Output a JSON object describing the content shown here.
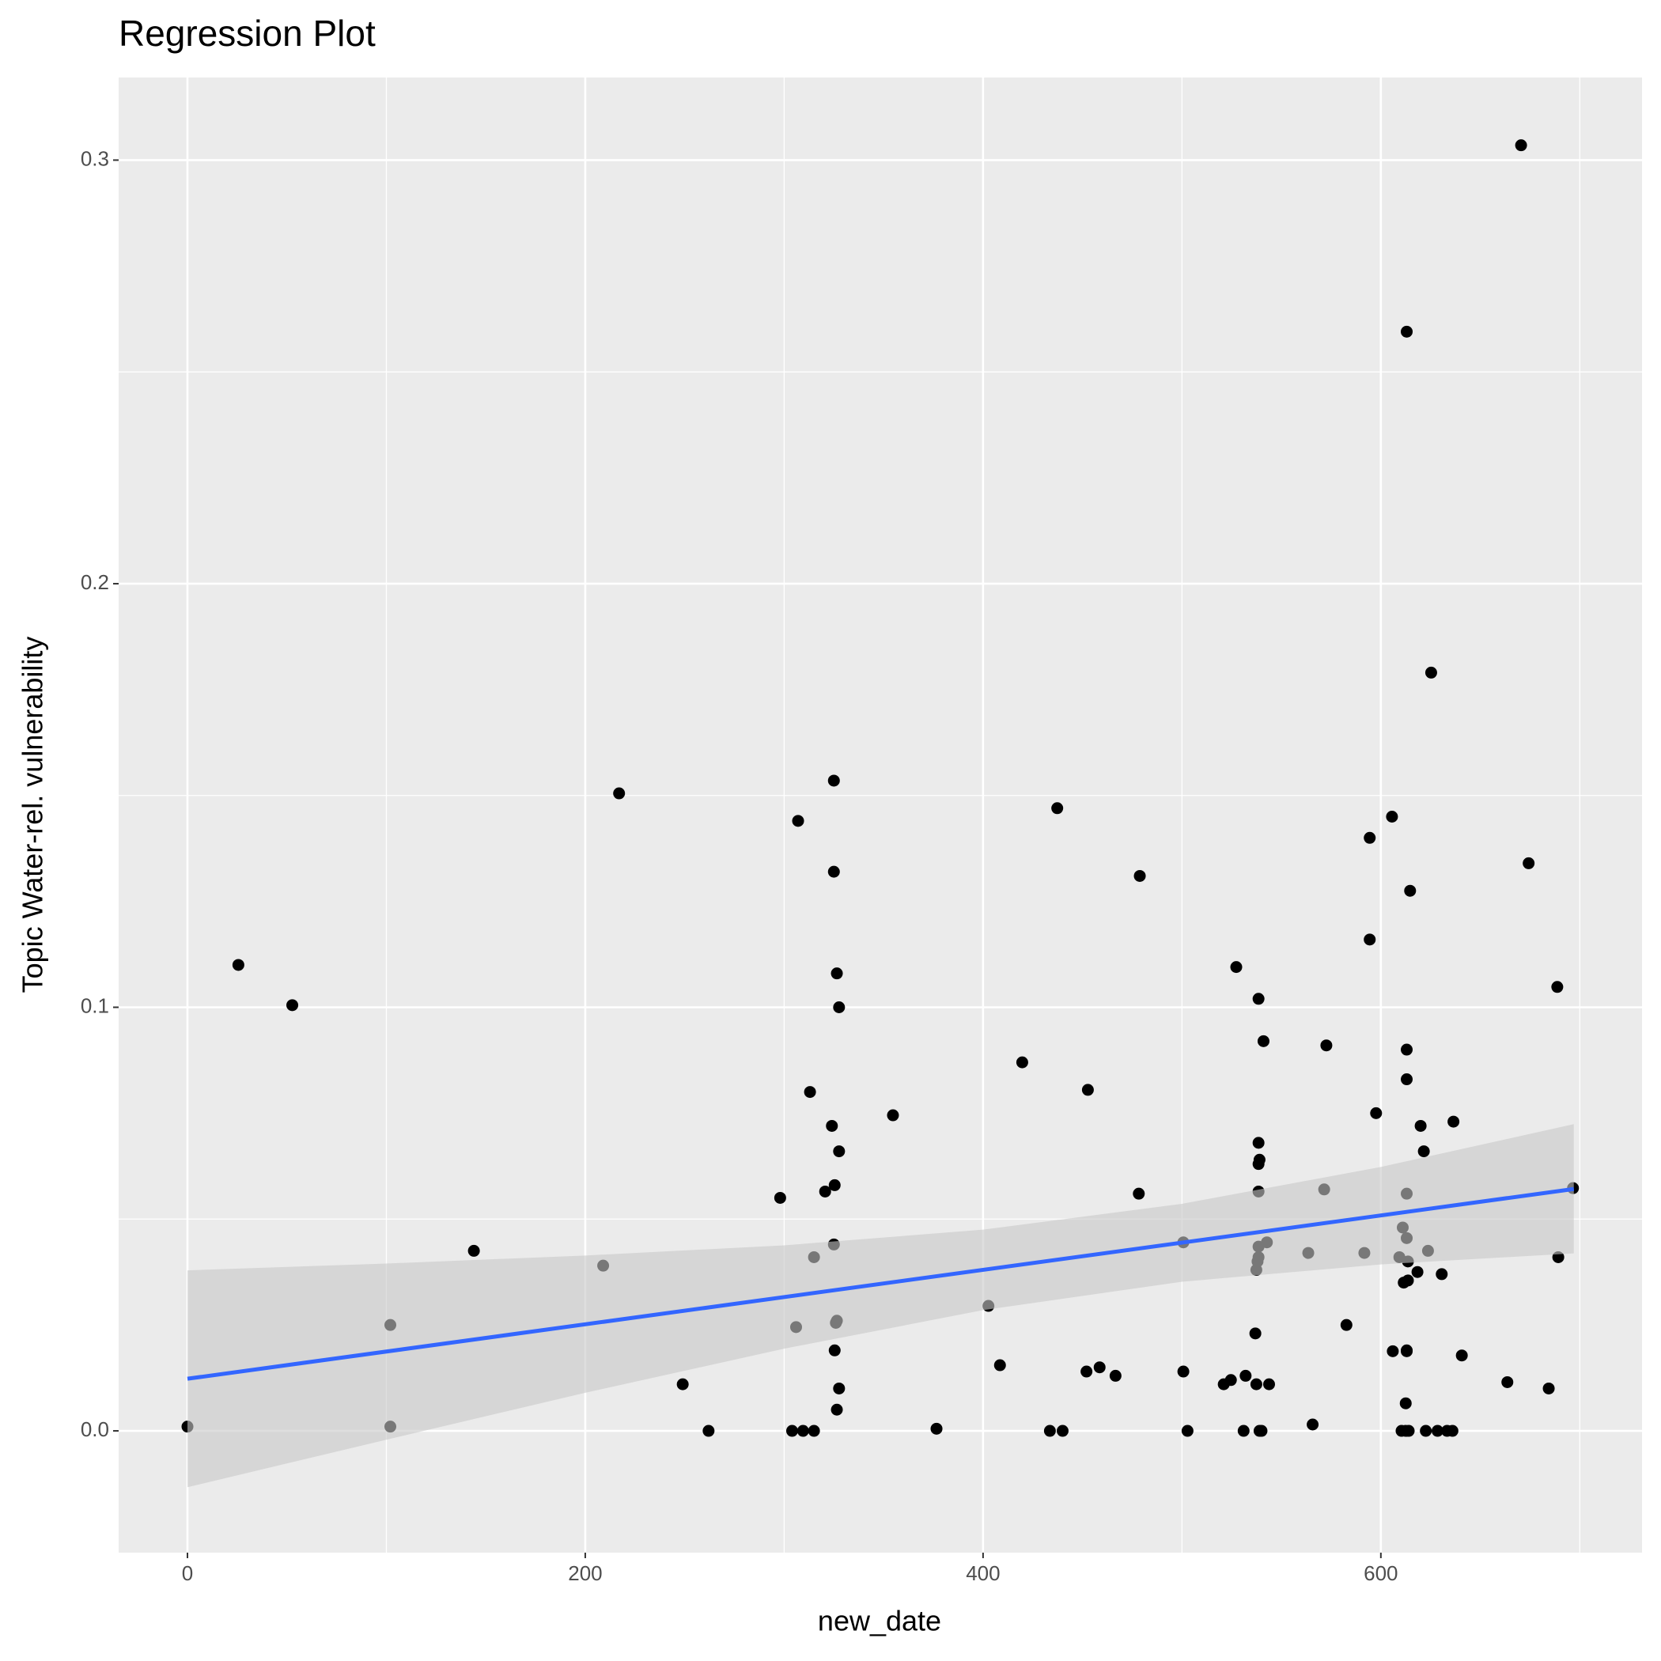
{
  "chart_data": {
    "type": "scatter",
    "title": "Regression Plot",
    "x_label": "new_date",
    "y_label": "Topic Water-rel. vulnerability",
    "xlim": [
      -34.6,
      731.3
    ],
    "ylim": [
      -0.02875,
      0.3195
    ],
    "xticks": [
      0,
      200,
      400,
      600
    ],
    "yticks": [
      {
        "value": 0,
        "label": "0.0"
      },
      0.1,
      0.2,
      0.3
    ],
    "xminorticks": [
      100,
      300,
      500,
      700
    ],
    "yminorticks": [
      0.05,
      0.15,
      0.25
    ],
    "grid": true,
    "color": "#000000",
    "x": [
      0,
      25.6,
      52.7,
      102,
      102,
      144,
      209,
      217,
      249,
      262,
      298,
      304,
      306,
      307,
      309.5,
      313,
      315,
      315,
      320.6,
      324,
      325,
      325,
      325,
      325.4,
      325.4,
      326,
      326.5,
      326.5,
      326.5,
      327.6,
      327.6,
      327.6,
      354.7,
      376.6,
      402.7,
      408.5,
      419.7,
      433.6,
      437.3,
      440,
      452,
      452.7,
      458.6,
      466.6,
      478.3,
      478.8,
      500.7,
      500.7,
      502.8,
      521,
      524.6,
      527.3,
      531,
      532,
      536.9,
      537.4,
      537.4,
      538,
      538.5,
      538.5,
      538.5,
      538.5,
      538.5,
      538.5,
      539,
      539,
      540,
      541,
      542.7,
      543.8,
      563.5,
      565.7,
      571.5,
      572.6,
      582.7,
      591.7,
      594.4,
      594.4,
      597.6,
      605.6,
      606,
      609.3,
      610.4,
      611,
      611.5,
      612.5,
      612.5,
      613,
      613,
      613,
      613,
      613,
      613,
      613,
      613.6,
      613.6,
      614,
      614.7,
      618.4,
      620,
      621.6,
      622.6,
      623.7,
      625.3,
      628.5,
      630.6,
      633.3,
      636,
      636.5,
      640.7,
      663.6,
      670.5,
      674.3,
      684.4,
      688.7,
      689.2,
      696.6
    ],
    "values": [
      0.001,
      0.11,
      0.1005,
      0.025,
      0.001,
      0.0425,
      0.039,
      0.1505,
      0.011,
      0,
      0.055,
      0,
      0.0245,
      0.144,
      0,
      0.08,
      0.041,
      0,
      0.0565,
      0.072,
      0.1535,
      0.132,
      0.044,
      0.058,
      0.019,
      0.0255,
      0.108,
      0.026,
      0.005,
      0.1,
      0.066,
      0.01,
      0.0745,
      0.0005,
      0.0295,
      0.0155,
      0.087,
      0,
      0.147,
      0,
      0.014,
      0.0805,
      0.015,
      0.013,
      0.056,
      0.131,
      0.0445,
      0.014,
      0,
      0.011,
      0.012,
      0.1095,
      0,
      0.013,
      0.023,
      0.038,
      0.011,
      0.04,
      0.102,
      0.068,
      0.063,
      0.0565,
      0.0435,
      0.041,
      0.064,
      0,
      0,
      0.092,
      0.0445,
      0.011,
      0.042,
      0.0015,
      0.057,
      0.091,
      0.025,
      0.042,
      0.14,
      0.116,
      0.075,
      0.145,
      0.0188,
      0.041,
      0,
      0.048,
      0.035,
      0.0065,
      0,
      0.2595,
      0.09,
      0.083,
      0.056,
      0.0455,
      0.019,
      0.0188,
      0.04,
      0.0355,
      0,
      0.1275,
      0.0375,
      0.072,
      0.066,
      0,
      0.0425,
      0.179,
      0,
      0.037,
      0,
      0,
      0.073,
      0.0178,
      0.0115,
      0.3035,
      0.134,
      0.01,
      0.1048,
      0.041,
      0.0573
    ],
    "fit": {
      "color": "#3366ff",
      "x": [
        0,
        697
      ],
      "values": [
        0.0123,
        0.0571
      ]
    },
    "band": {
      "color": "#c8c8c8",
      "x": [
        0,
        100,
        200,
        300,
        400,
        500,
        600,
        697
      ],
      "upper": [
        0.0379,
        0.0395,
        0.0414,
        0.0438,
        0.0475,
        0.0536,
        0.0623,
        0.0724
      ],
      "lower": [
        -0.0133,
        -0.0021,
        0.009,
        0.0194,
        0.0285,
        0.0352,
        0.0393,
        0.0419
      ]
    }
  }
}
